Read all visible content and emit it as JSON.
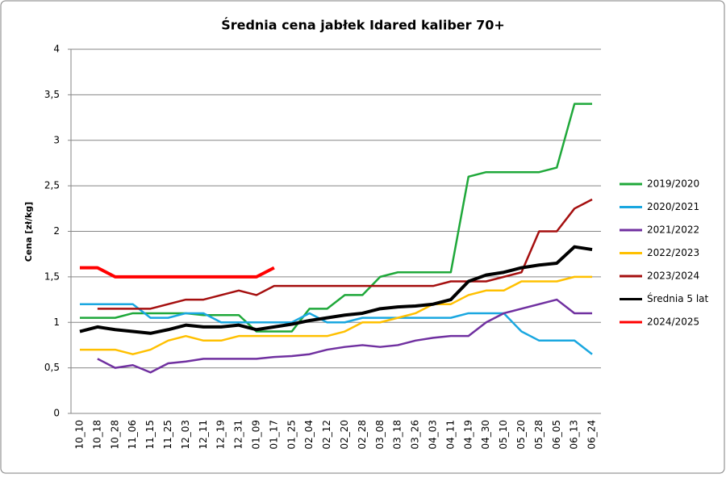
{
  "chart_data": {
    "type": "line",
    "title": "Średnia cena jabłek Idared kaliber 70+",
    "y_label": "Cena [zł/kg]",
    "categories": [
      "10_10",
      "10_18",
      "10_28",
      "11_06",
      "11_15",
      "11_25",
      "12_03",
      "12_11",
      "12_19",
      "12_31",
      "01_09",
      "01_17",
      "01_25",
      "02_04",
      "02_12",
      "02_20",
      "02_28",
      "03_08",
      "03_18",
      "03_26",
      "04_03",
      "04_11",
      "04_19",
      "04_30",
      "05_10",
      "05_20",
      "05_28",
      "06_05",
      "06_13",
      "06_24"
    ],
    "ylim": [
      0,
      4
    ],
    "yticks": [
      0,
      {
        "value": 0.5,
        "label": "0,5"
      },
      1,
      {
        "value": 1.5,
        "label": "1,5"
      },
      2,
      {
        "value": 2.5,
        "label": "2,5"
      },
      3,
      {
        "value": 3.5,
        "label": "3,5"
      },
      4
    ],
    "grid": true,
    "legend": "right",
    "series": [
      {
        "name": "2019/2020",
        "color": "#1fa83a",
        "values": [
          1.05,
          1.05,
          1.05,
          1.1,
          1.1,
          1.1,
          1.1,
          1.08,
          1.08,
          1.08,
          0.9,
          0.9,
          0.9,
          1.15,
          1.15,
          1.3,
          1.3,
          1.5,
          1.55,
          1.55,
          1.55,
          1.55,
          2.6,
          2.65,
          2.65,
          2.65,
          2.65,
          2.7,
          3.4,
          3.4
        ]
      },
      {
        "name": "2020/2021",
        "color": "#1aa7e0",
        "values": [
          1.2,
          1.2,
          1.2,
          1.2,
          1.05,
          1.05,
          1.1,
          1.1,
          1.0,
          1.0,
          1.0,
          1.0,
          1.0,
          1.1,
          1.0,
          1.0,
          1.05,
          1.05,
          1.05,
          1.05,
          1.05,
          1.05,
          1.1,
          1.1,
          1.1,
          0.9,
          0.8,
          0.8,
          0.8,
          0.65
        ]
      },
      {
        "name": "2021/2022",
        "color": "#7030a0",
        "values": [
          null,
          0.6,
          0.5,
          0.53,
          0.45,
          0.55,
          0.57,
          0.6,
          0.6,
          0.6,
          0.6,
          0.62,
          0.63,
          0.65,
          0.7,
          0.73,
          0.75,
          0.73,
          0.75,
          0.8,
          0.83,
          0.85,
          0.85,
          1.0,
          1.1,
          1.15,
          1.2,
          1.25,
          1.1,
          1.1
        ]
      },
      {
        "name": "2022/2023",
        "color": "#ffc000",
        "values": [
          0.7,
          0.7,
          0.7,
          0.65,
          0.7,
          0.8,
          0.85,
          0.8,
          0.8,
          0.85,
          0.85,
          0.85,
          0.85,
          0.85,
          0.85,
          0.9,
          1.0,
          1.0,
          1.05,
          1.1,
          1.2,
          1.2,
          1.3,
          1.35,
          1.35,
          1.45,
          1.45,
          1.45,
          1.5,
          1.5
        ]
      },
      {
        "name": "2023/2024",
        "color": "#a50f0f",
        "values": [
          null,
          1.15,
          1.15,
          1.15,
          1.15,
          1.2,
          1.25,
          1.25,
          1.3,
          1.35,
          1.3,
          1.4,
          1.4,
          1.4,
          1.4,
          1.4,
          1.4,
          1.4,
          1.4,
          1.4,
          1.4,
          1.45,
          1.45,
          1.45,
          1.5,
          1.55,
          2.0,
          2.0,
          2.25,
          2.35
        ]
      },
      {
        "name": "Średnia 5 lat",
        "color": "#000000",
        "values": [
          0.9,
          0.95,
          0.92,
          0.9,
          0.88,
          0.92,
          0.97,
          0.95,
          0.95,
          0.97,
          0.92,
          0.95,
          0.98,
          1.02,
          1.05,
          1.08,
          1.1,
          1.15,
          1.17,
          1.18,
          1.2,
          1.25,
          1.45,
          1.52,
          1.55,
          1.6,
          1.63,
          1.65,
          1.83,
          1.8
        ]
      },
      {
        "name": "2024/2025",
        "color": "#ff0000",
        "values": [
          1.6,
          1.6,
          1.5,
          1.5,
          1.5,
          1.5,
          1.5,
          1.5,
          1.5,
          1.5,
          1.5,
          1.6,
          null,
          null,
          null,
          null,
          null,
          null,
          null,
          null,
          null,
          null,
          null,
          null,
          null,
          null,
          null,
          null,
          null,
          null
        ]
      }
    ]
  }
}
